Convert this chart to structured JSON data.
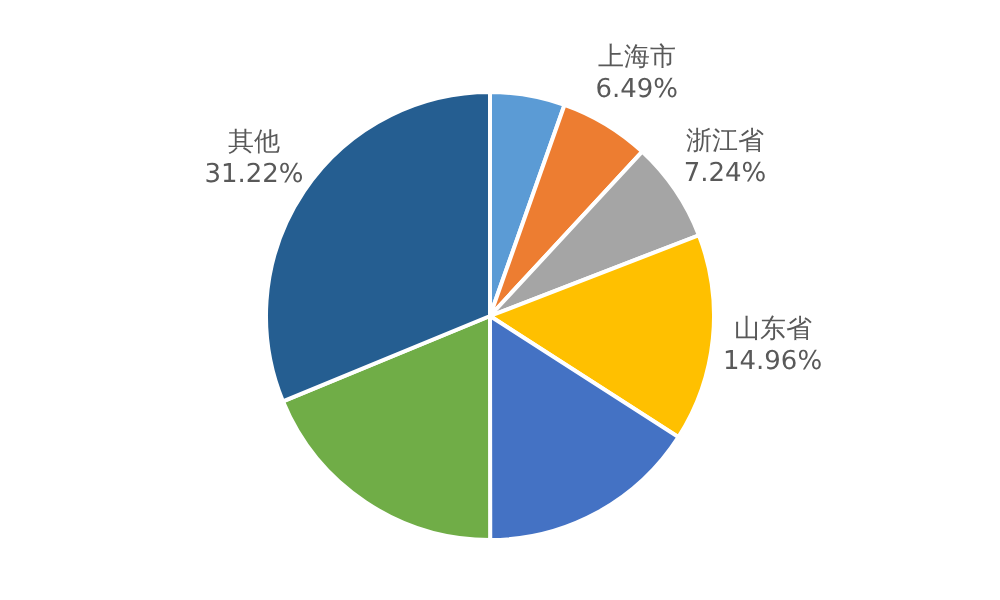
{
  "chart_data": {
    "type": "pie",
    "categories": [
      null,
      "上海市",
      "浙江省",
      "山东省",
      null,
      null,
      "其他"
    ],
    "values": [
      5.4,
      6.49,
      7.24,
      14.96,
      15.9,
      18.79,
      31.22
    ],
    "colors": [
      "#5b9bd5",
      "#ed7d31",
      "#a5a5a5",
      "#ffc000",
      "#4472c4",
      "#70ad47",
      "#255e91"
    ],
    "value_labels": [
      null,
      "6.49%",
      "7.24%",
      "14.96%",
      null,
      null,
      "31.22%"
    ]
  }
}
